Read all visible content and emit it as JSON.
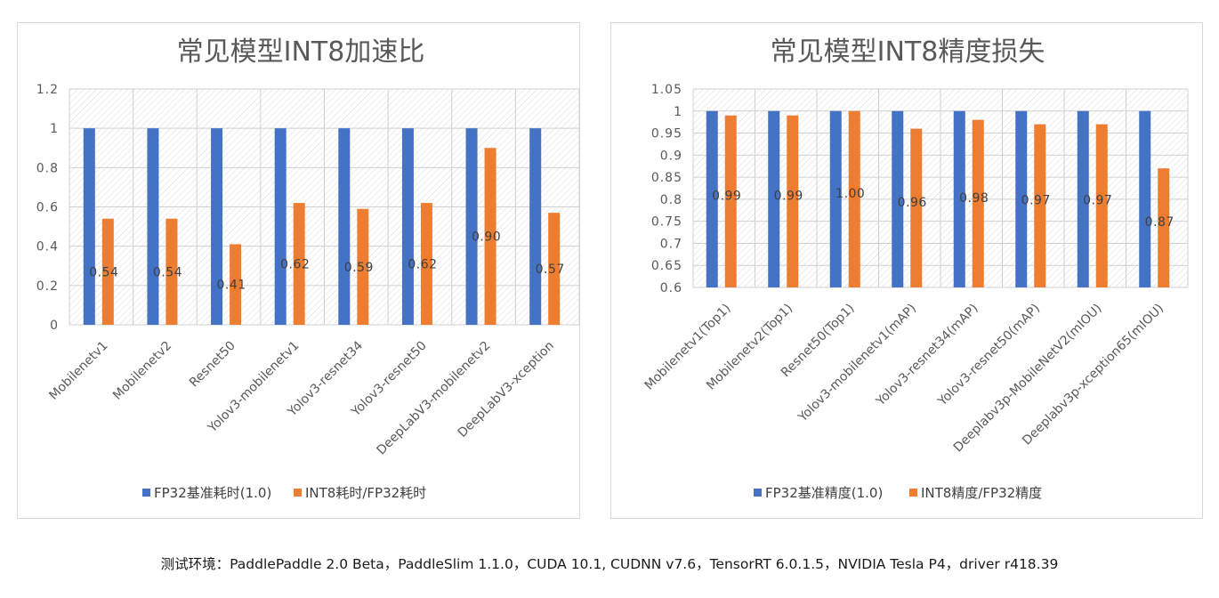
{
  "chart_data": [
    {
      "type": "bar",
      "title": "常见模型INT8加速比",
      "categories": [
        "Mobilenetv1",
        "Mobilenetv2",
        "Resnet50",
        "Yolov3-mobilenetv1",
        "Yolov3-resnet34",
        "Yolov3-resnet50",
        "DeepLabV3-mobilenetv2",
        "DeepLabV3-xception"
      ],
      "series": [
        {
          "name": "FP32基准耗时(1.0)",
          "values": [
            1,
            1,
            1,
            1,
            1,
            1,
            1,
            1
          ],
          "color": "#4472c4"
        },
        {
          "name": "INT8耗时/FP32耗时",
          "values": [
            0.54,
            0.54,
            0.41,
            0.62,
            0.59,
            0.62,
            0.9,
            0.57
          ],
          "color": "#ed7d31",
          "labels": [
            "0.54",
            "0.54",
            "0.41",
            "0.62",
            "0.59",
            "0.62",
            "0.90",
            "0.57"
          ]
        }
      ],
      "ylim": [
        0,
        1.2
      ],
      "yticks": [
        "0",
        "0.2",
        "0.4",
        "0.6",
        "0.8",
        "1",
        "1.2"
      ],
      "xlabel": "",
      "ylabel": "",
      "legend": "bottom"
    },
    {
      "type": "bar",
      "title": "常见模型INT8精度损失",
      "categories": [
        "Mobilenetv1(Top1)",
        "Mobilenetv2(Top1)",
        "Resnet50(Top1)",
        "Yolov3-mobilenetv1(mAP)",
        "Yolov3-resnet34(mAP)",
        "Yolov3-resnet50(mAP)",
        "Deeplabv3p-MobileNetV2(mIOU)",
        "Deeplabv3p-xception65(mIOU)"
      ],
      "series": [
        {
          "name": "FP32基准精度(1.0)",
          "values": [
            1,
            1,
            1,
            1,
            1,
            1,
            1,
            1
          ],
          "color": "#4472c4"
        },
        {
          "name": "INT8精度/FP32精度",
          "values": [
            0.99,
            0.99,
            1.0,
            0.96,
            0.98,
            0.97,
            0.97,
            0.87
          ],
          "color": "#ed7d31",
          "labels": [
            "0.99",
            "0.99",
            "1.00",
            "0.96",
            "0.98",
            "0.97",
            "0.97",
            "0.87"
          ]
        }
      ],
      "ylim": [
        0.6,
        1.05
      ],
      "yticks": [
        "0.6",
        "0.65",
        "0.7",
        "0.75",
        "0.8",
        "0.85",
        "0.9",
        "0.95",
        "1",
        "1.05"
      ],
      "xlabel": "",
      "ylabel": "",
      "legend": "bottom"
    }
  ],
  "footer": "测试环境：PaddlePaddle 2.0 Beta，PaddleSlim 1.1.0，CUDA 10.1, CUDNN v7.6，TensorRT 6.0.1.5，NVIDIA Tesla P4，driver r418.39"
}
